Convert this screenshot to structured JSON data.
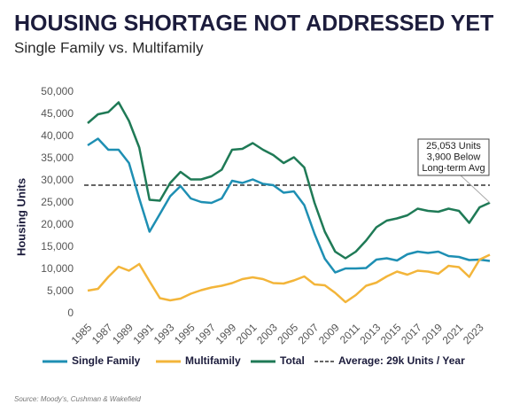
{
  "chart_data": {
    "type": "line",
    "title": "HOUSING SHORTAGE NOT ADDRESSED YET",
    "subtitle": "Single Family vs. Multifamily",
    "y_label": "Housing Units",
    "source": "Source:  Moody's, Cushman & Wakefield",
    "x": [
      1985,
      1986,
      1987,
      1988,
      1989,
      1990,
      1991,
      1992,
      1993,
      1994,
      1995,
      1996,
      1997,
      1998,
      1999,
      2000,
      2001,
      2002,
      2003,
      2004,
      2005,
      2006,
      2007,
      2008,
      2009,
      2010,
      2011,
      2012,
      2013,
      2014,
      2015,
      2016,
      2017,
      2018,
      2019,
      2020,
      2021,
      2022,
      2023,
      2024
    ],
    "xlim": [
      1985,
      2024
    ],
    "xticks": [
      1985,
      1987,
      1989,
      1991,
      1993,
      1995,
      1997,
      1999,
      2001,
      2003,
      2005,
      2007,
      2009,
      2011,
      2013,
      2015,
      2017,
      2019,
      2021,
      2023
    ],
    "ylim": [
      0,
      50000
    ],
    "yticks": [
      0,
      {
        "value": 5000,
        "label": "5,000"
      },
      {
        "value": 10000,
        "label": "10,000"
      },
      {
        "value": 15000,
        "label": "15,000"
      },
      {
        "value": 20000,
        "label": "20,000"
      },
      {
        "value": 25000,
        "label": "25,000"
      },
      {
        "value": 30000,
        "label": "30,000"
      },
      {
        "value": 35000,
        "label": "35,000"
      },
      {
        "value": 40000,
        "label": "40,000"
      },
      {
        "value": 45000,
        "label": "45,000"
      },
      {
        "value": 50000,
        "label": "50,000"
      }
    ],
    "grid": false,
    "series": [
      {
        "name": "Single Family",
        "color": "#1e8fb3",
        "values": [
          38000,
          39500,
          37000,
          37000,
          34000,
          26000,
          18500,
          22500,
          26500,
          28800,
          26000,
          25200,
          25000,
          26000,
          30000,
          29500,
          30300,
          29300,
          29000,
          27300,
          27600,
          24500,
          18000,
          12400,
          9300,
          10200,
          10200,
          10300,
          12200,
          12500,
          12000,
          13400,
          14000,
          13700,
          14000,
          13000,
          12800,
          12100,
          12200,
          11900
        ]
      },
      {
        "name": "Multifamily",
        "color": "#f3b53a",
        "values": [
          5200,
          5600,
          8300,
          10600,
          9700,
          11200,
          7300,
          3500,
          3000,
          3400,
          4500,
          5300,
          5900,
          6300,
          6900,
          7800,
          8200,
          7800,
          6900,
          6800,
          7500,
          8400,
          6600,
          6400,
          4700,
          2600,
          4200,
          6300,
          7000,
          8400,
          9500,
          8800,
          9700,
          9500,
          9000,
          10800,
          10500,
          8300,
          12200,
          13300
        ]
      },
      {
        "name": "Total",
        "color": "#1f7a56",
        "values": [
          43000,
          45000,
          45500,
          47700,
          43500,
          37500,
          25700,
          25500,
          29500,
          32000,
          30300,
          30300,
          31000,
          32500,
          37000,
          37200,
          38500,
          37000,
          35800,
          34000,
          35300,
          33000,
          25000,
          18500,
          14000,
          12500,
          14000,
          16500,
          19500,
          21000,
          21500,
          22200,
          23700,
          23200,
          23000,
          23700,
          23200,
          20500,
          24000,
          25053
        ]
      }
    ],
    "average": {
      "name": "Average: 29k Units / Year",
      "value": 29000,
      "color": "#333333"
    },
    "annotation": [
      "25,053 Units",
      "3,900 Below",
      "Long-term Avg"
    ]
  }
}
